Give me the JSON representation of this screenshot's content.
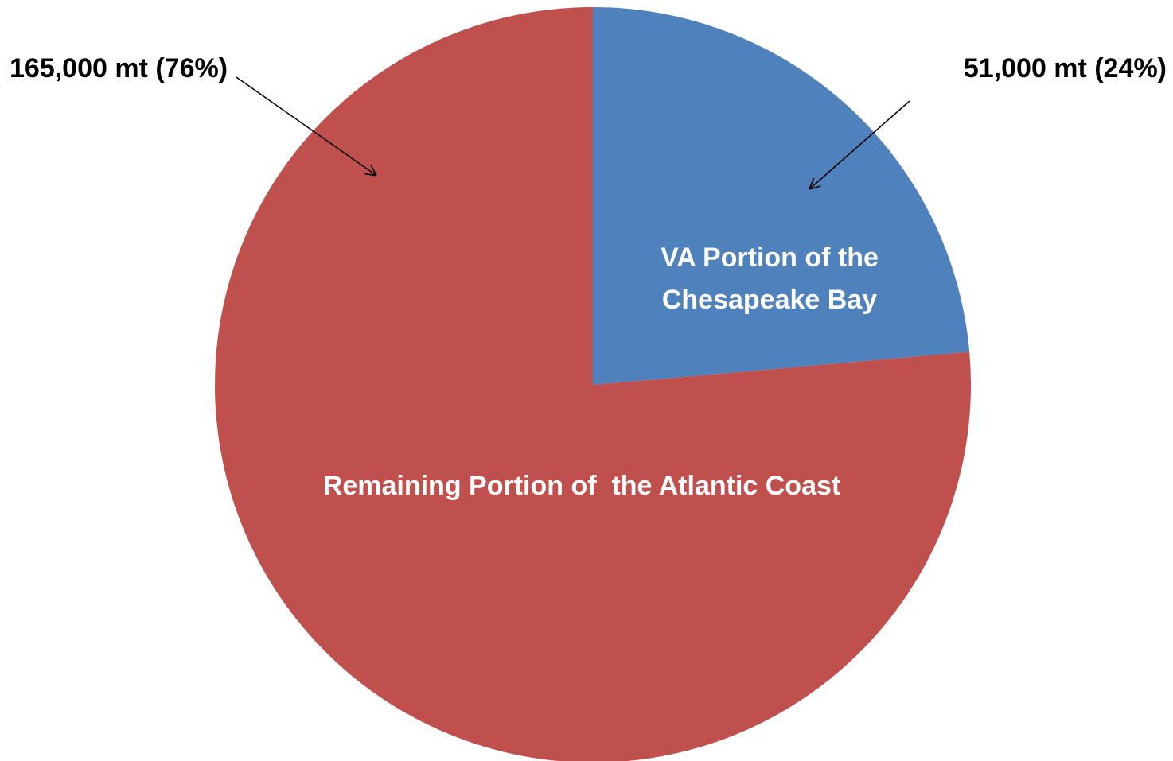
{
  "chart_data": {
    "type": "pie",
    "categories": [
      "VA Portion of the Chesapeake Bay",
      "Remaining Portion of  the Atlantic Coast"
    ],
    "values": [
      51000,
      165000
    ],
    "value_labels": [
      "51,000 mt (24%)",
      "165,000 mt (76%)"
    ],
    "colors": [
      "#4f81bd",
      "#c0504d"
    ]
  }
}
